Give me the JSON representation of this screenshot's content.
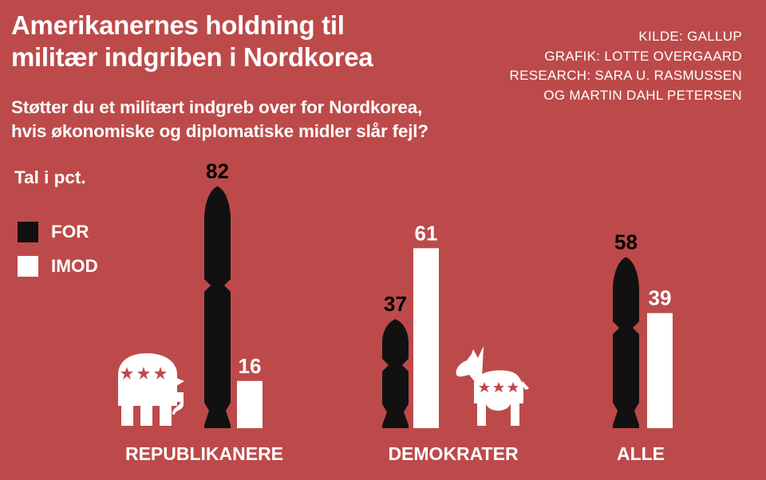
{
  "title_lines": [
    "Amerikanernes holdning til",
    "militær indgriben i Nordkorea"
  ],
  "credits": [
    "KILDE: GALLUP",
    "GRAFIK: LOTTE OVERGAARD",
    "RESEARCH: SARA U. RASMUSSEN",
    "OG MARTIN DAHL PETERSEN"
  ],
  "question_lines": [
    "Støtter du et militært indgreb over for Nordkorea,",
    "hvis økonomiske og diplomatiske midler slår fejl?"
  ],
  "unit_label": "Tal i pct.",
  "colors": {
    "background": "#bd4a4a",
    "for": "#111111",
    "imod": "#ffffff",
    "text": "#ffffff"
  },
  "icons": {
    "republican": "elephant-icon",
    "democrat": "donkey-icon"
  },
  "chart_data": {
    "type": "bar",
    "categories": [
      "REPUBLIKANERE",
      "DEMOKRATER",
      "ALLE"
    ],
    "series": [
      {
        "name": "FOR",
        "values": [
          82,
          37,
          58
        ]
      },
      {
        "name": "IMOD",
        "values": [
          16,
          61,
          39
        ]
      }
    ],
    "unit": "Tal i pct.",
    "ylim": [
      0,
      100
    ],
    "grid": false,
    "legend": "left"
  }
}
